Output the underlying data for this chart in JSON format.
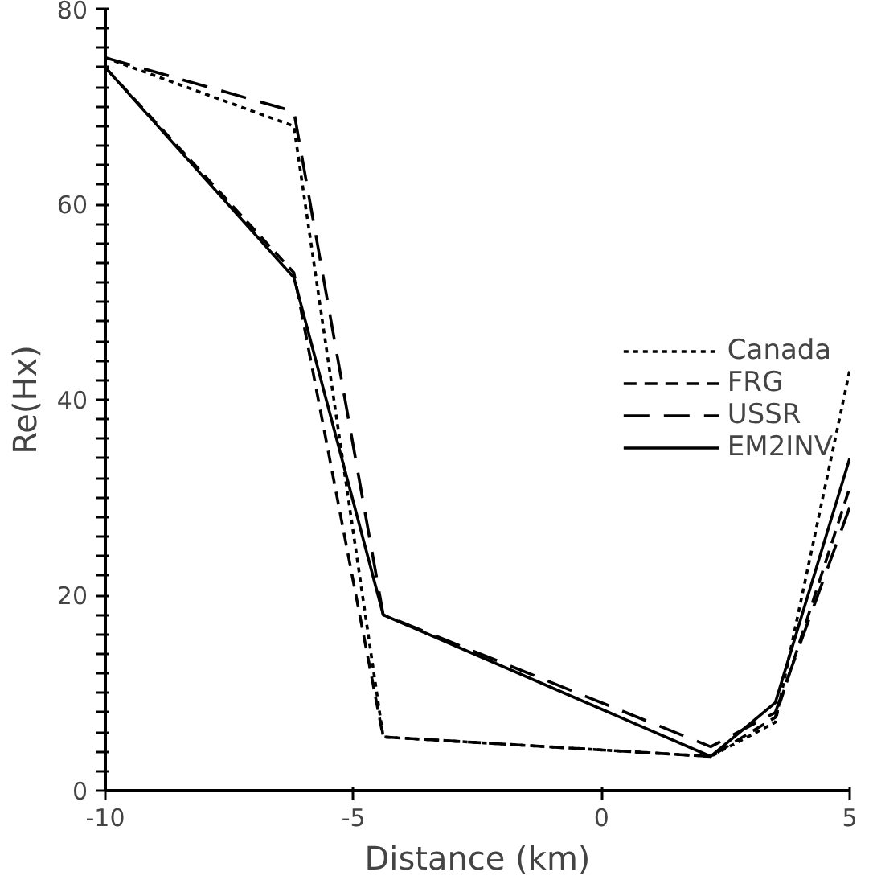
{
  "chart_data": {
    "type": "line",
    "xlabel": "Distance (km)",
    "ylabel": "Re(Hx)",
    "xlim": [
      -10,
      5
    ],
    "xticks": [
      -10,
      -5,
      0,
      5
    ],
    "ylim": [
      0,
      80
    ],
    "yticks": [
      0,
      {
        "value": 2,
        "label": null
      },
      {
        "value": 4,
        "label": null
      },
      {
        "value": 6,
        "label": null
      },
      {
        "value": 8,
        "label": null
      },
      {
        "value": 10,
        "label": null
      },
      {
        "value": 12,
        "label": null
      },
      {
        "value": 14,
        "label": null
      },
      {
        "value": 16,
        "label": null
      },
      {
        "value": 18,
        "label": null
      },
      20,
      {
        "value": 22,
        "label": null
      },
      {
        "value": 24,
        "label": null
      },
      {
        "value": 26,
        "label": null
      },
      {
        "value": 28,
        "label": null
      },
      {
        "value": 30,
        "label": null
      },
      {
        "value": 32,
        "label": null
      },
      {
        "value": 34,
        "label": null
      },
      {
        "value": 36,
        "label": null
      },
      {
        "value": 38,
        "label": null
      },
      40,
      {
        "value": 42,
        "label": null
      },
      {
        "value": 44,
        "label": null
      },
      {
        "value": 46,
        "label": null
      },
      {
        "value": 48,
        "label": null
      },
      {
        "value": 50,
        "label": null
      },
      {
        "value": 52,
        "label": null
      },
      {
        "value": 54,
        "label": null
      },
      {
        "value": 56,
        "label": null
      },
      {
        "value": 58,
        "label": null
      },
      60,
      {
        "value": 62,
        "label": null
      },
      {
        "value": 64,
        "label": null
      },
      {
        "value": 66,
        "label": null
      },
      {
        "value": 68,
        "label": null
      },
      {
        "value": 70,
        "label": null
      },
      {
        "value": 72,
        "label": null
      },
      {
        "value": 74,
        "label": null
      },
      {
        "value": 76,
        "label": null
      },
      {
        "value": 78,
        "label": null
      },
      80
    ],
    "grid": false,
    "legend": "right",
    "marker": "none",
    "series": [
      {
        "name": "Canada",
        "color": "#000000",
        "line_style": "dotted",
        "x": [
          -10,
          -6.2,
          -4.4,
          2.2,
          3.5,
          5
        ],
        "values": [
          75,
          68,
          5.5,
          3.5,
          7,
          43
        ]
      },
      {
        "name": "FRG",
        "color": "#000000",
        "line_style": "dashed",
        "x": [
          -10,
          -6.2,
          -4.4,
          2.2,
          3.5,
          5
        ],
        "values": [
          74,
          53,
          5.5,
          3.5,
          7.5,
          31
        ]
      },
      {
        "name": "USSR",
        "color": "#000000",
        "line_style": "longdash",
        "x": [
          -10,
          -6.2,
          -4.4,
          2.2,
          3.5,
          5
        ],
        "values": [
          75,
          69.5,
          18,
          4.5,
          8,
          29
        ]
      },
      {
        "name": "EM2INV",
        "color": "#000000",
        "line_style": "solid",
        "x": [
          -10,
          -6.2,
          -4.4,
          2.2,
          3.5,
          5
        ],
        "values": [
          74,
          52.5,
          18,
          3.5,
          9,
          34
        ]
      }
    ]
  }
}
